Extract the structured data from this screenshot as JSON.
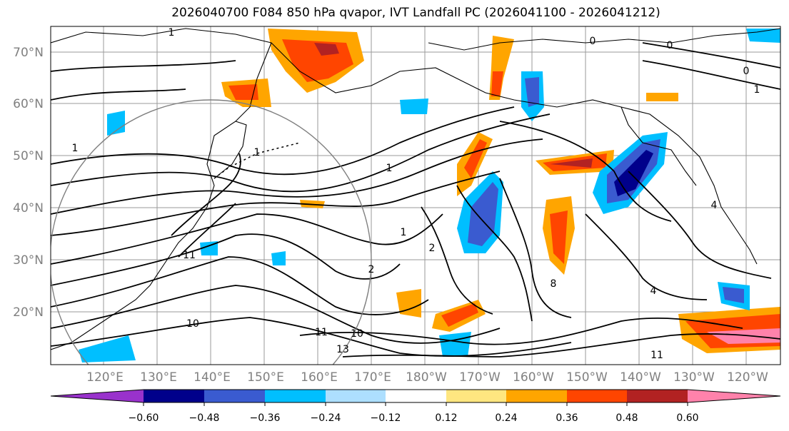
{
  "title": "2026040700 F084 850 hPa qvapor, IVT Landfall PC (2026041100 - 2026041212)",
  "map": {
    "lat_labels": [
      "70°N",
      "60°N",
      "50°N",
      "40°N",
      "30°N",
      "20°N"
    ],
    "lon_labels": [
      "120°E",
      "130°E",
      "140°E",
      "150°E",
      "160°E",
      "170°E",
      "180°W",
      "170°W",
      "160°W",
      "150°W",
      "140°W",
      "130°W",
      "120°W"
    ],
    "contour_labels": [
      "1",
      "1",
      "1",
      "1",
      "1",
      "2",
      "2",
      "4",
      "4",
      "8",
      "10",
      "10",
      "11",
      "11",
      "11",
      "13",
      "0",
      "0",
      "0",
      "1"
    ]
  },
  "colorbar": {
    "ticks": [
      "−0.60",
      "−0.48",
      "−0.36",
      "−0.24",
      "−0.12",
      "0.12",
      "0.24",
      "0.36",
      "0.48",
      "0.60"
    ],
    "colors": [
      "#9932CC",
      "#00008B",
      "#3A5BD0",
      "#00BFFF",
      "#ADDFFF",
      "#FFFFFF",
      "#FFE680",
      "#FFA500",
      "#FF4500",
      "#B22222",
      "#FF82AB"
    ]
  }
}
